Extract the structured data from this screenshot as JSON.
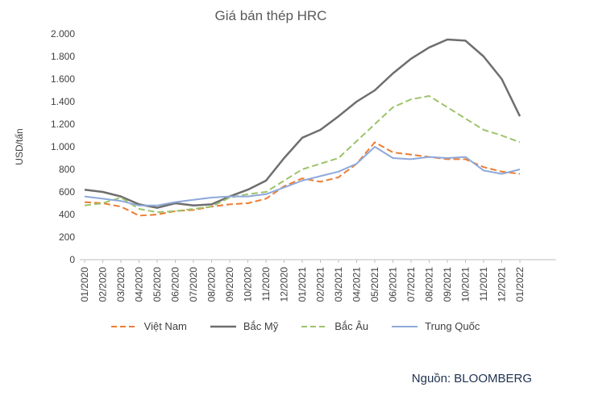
{
  "chart_data": {
    "type": "line",
    "title": "Giá bán thép HRC",
    "ylabel": "USD/tấn",
    "source": "Nguồn: BLOOMBERG",
    "ylim": [
      0,
      2000
    ],
    "ytick_step": 200,
    "ytick_labels": [
      "0",
      "200",
      "400",
      "600",
      "800",
      "1.000",
      "1.200",
      "1.400",
      "1.600",
      "1.800",
      "2.000"
    ],
    "legend_position": "bottom",
    "grid": false,
    "axis_color": "#BFBFBF",
    "categories": [
      "01/2020",
      "02/2020",
      "03/2020",
      "04/2020",
      "05/2020",
      "06/2020",
      "07/2020",
      "08/2020",
      "09/2020",
      "10/2020",
      "11/2020",
      "12/2020",
      "01/2021",
      "02/2021",
      "03/2021",
      "04/2021",
      "05/2021",
      "06/2021",
      "07/2021",
      "08/2021",
      "09/2021",
      "10/2021",
      "11/2021",
      "12/2021",
      "01/2022"
    ],
    "series": [
      {
        "name": "Việt Nam",
        "color": "#ED7D31",
        "style": "dashed",
        "width": 2,
        "values": [
          510,
          500,
          470,
          390,
          400,
          430,
          440,
          470,
          490,
          500,
          540,
          650,
          720,
          690,
          730,
          850,
          1040,
          950,
          930,
          910,
          890,
          890,
          820,
          780,
          760
        ]
      },
      {
        "name": "Bắc Mỹ",
        "color": "#6E6E6E",
        "style": "solid",
        "width": 2.5,
        "values": [
          620,
          600,
          560,
          490,
          460,
          500,
          480,
          490,
          560,
          620,
          700,
          900,
          1080,
          1150,
          1270,
          1400,
          1500,
          1650,
          1780,
          1880,
          1950,
          1940,
          1800,
          1600,
          1270
        ]
      },
      {
        "name": "Bắc Âu",
        "color": "#9DC36A",
        "style": "dashed",
        "width": 2,
        "values": [
          480,
          500,
          550,
          450,
          420,
          430,
          450,
          470,
          550,
          580,
          600,
          700,
          800,
          850,
          900,
          1050,
          1200,
          1350,
          1420,
          1450,
          1350,
          1250,
          1150,
          1100,
          1040
        ]
      },
      {
        "name": "Trung Quốc",
        "color": "#8EA9DB",
        "style": "solid",
        "width": 2,
        "values": [
          560,
          540,
          520,
          480,
          480,
          510,
          530,
          550,
          560,
          560,
          580,
          640,
          700,
          740,
          780,
          850,
          1000,
          900,
          890,
          910,
          900,
          910,
          790,
          760,
          800
        ]
      }
    ]
  }
}
